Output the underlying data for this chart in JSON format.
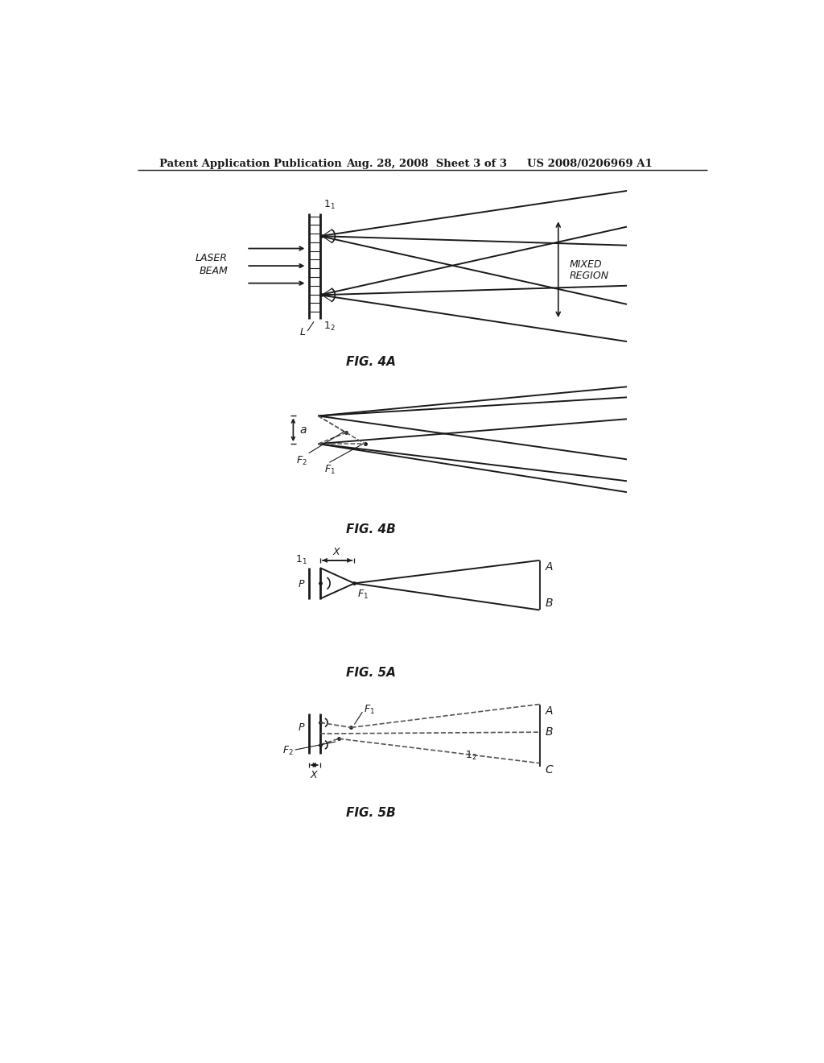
{
  "bg_color": "#ffffff",
  "line_color": "#1a1a1a",
  "dashed_color": "#555555",
  "header_text1": "Patent Application Publication",
  "header_text2": "Aug. 28, 2008  Sheet 3 of 3",
  "header_text3": "US 2008/0206969 A1",
  "fig4a_label": "FIG. 4A",
  "fig4b_label": "FIG. 4B",
  "fig5a_label": "FIG. 5A",
  "fig5b_label": "FIG. 5B"
}
